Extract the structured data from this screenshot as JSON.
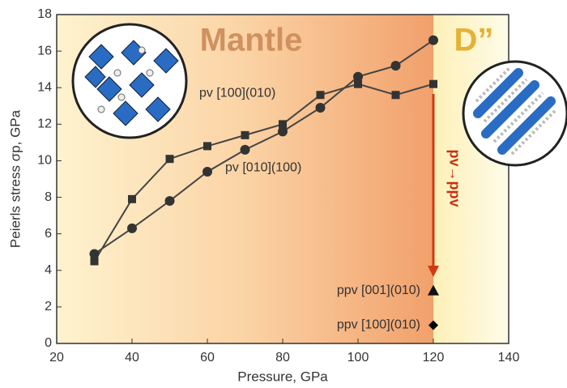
{
  "chart_data": {
    "type": "line",
    "x_label": "Pressure, GPa",
    "y_label": "Peierls stress σp, GPa",
    "annotations": [
      "Mantle",
      "D”",
      "pv→ppv"
    ],
    "xlim": [
      20,
      140
    ],
    "xticks": [
      20,
      40,
      60,
      80,
      100,
      120,
      140
    ],
    "ylim": [
      0,
      18
    ],
    "yticks": [
      0,
      2,
      4,
      6,
      8,
      10,
      12,
      14,
      16,
      18
    ],
    "series": [
      {
        "name": "pv [100](010)",
        "marker": "square",
        "color": "#333333",
        "x": [
          30,
          40,
          50,
          60,
          70,
          80,
          90,
          100,
          110,
          120
        ],
        "values": [
          4.5,
          7.9,
          10.1,
          10.8,
          11.4,
          12.0,
          13.6,
          14.2,
          13.6,
          14.2
        ]
      },
      {
        "name": "pv [010](100)",
        "marker": "circle",
        "color": "#333333",
        "x": [
          30,
          40,
          50,
          60,
          70,
          80,
          90,
          100,
          110,
          120
        ],
        "values": [
          4.9,
          6.3,
          7.8,
          9.4,
          10.6,
          11.6,
          12.9,
          14.6,
          15.2,
          16.6
        ]
      },
      {
        "name": "ppv [001](010)",
        "marker": "triangle",
        "color": "#111111",
        "x": [
          120
        ],
        "values": [
          2.9
        ]
      },
      {
        "name": "ppv [100](010)",
        "marker": "diamond",
        "color": "#000000",
        "x": [
          120
        ],
        "values": [
          1.0
        ]
      }
    ]
  }
}
